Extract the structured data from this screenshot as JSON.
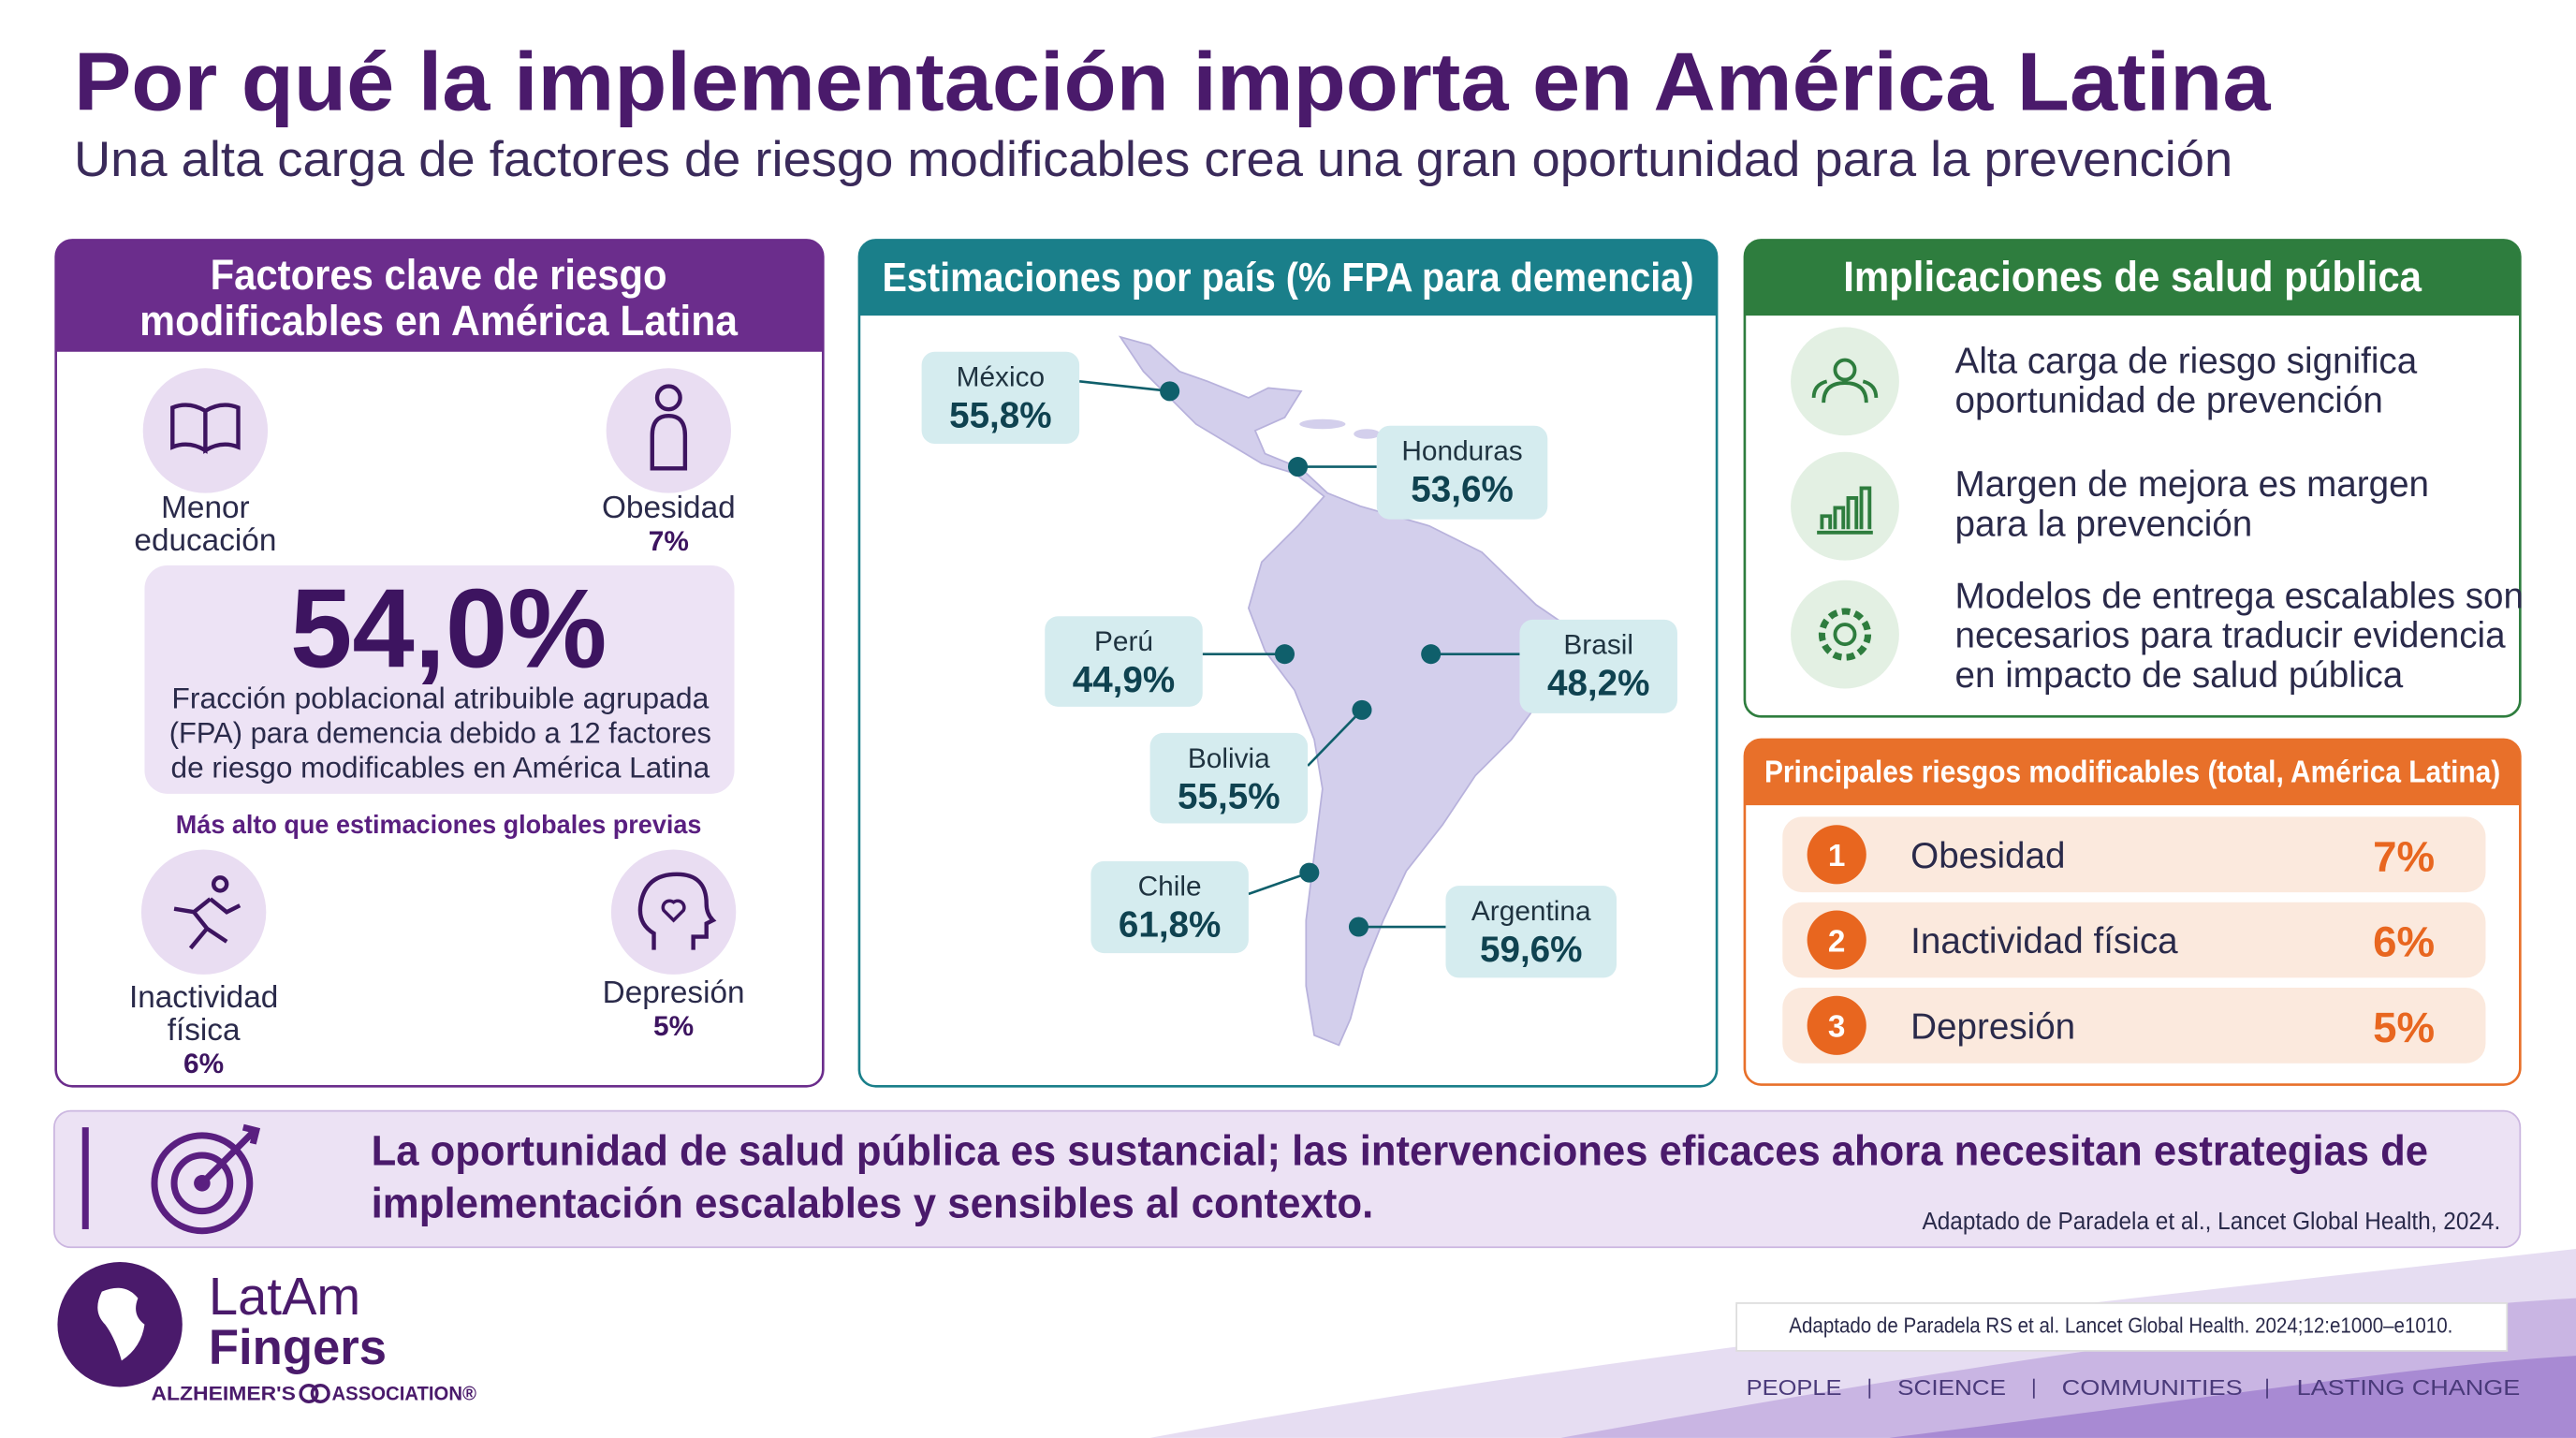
{
  "header": {
    "title": "Por qué la implementación importa en América Latina",
    "subtitle": "Una alta carga de factores de riesgo modificables crea una gran oportunidad para la prevención"
  },
  "risk_factors_panel": {
    "title": [
      "Factores clave de riesgo",
      "modificables en América Latina"
    ],
    "factors": [
      {
        "label": [
          "Menor",
          "educación"
        ]
      },
      {
        "label": [
          "Obesidad"
        ],
        "value": "7%"
      },
      {
        "label": [
          "Inactividad",
          "física"
        ],
        "value": "6%"
      },
      {
        "label": [
          "Depresión"
        ],
        "value": "5%"
      }
    ],
    "headline_value": "54,0%",
    "headline_text": [
      "Fracción poblacional atribuible agrupada",
      "(FPA) para demencia debido a 12 factores",
      "de riesgo modificables en América Latina"
    ],
    "note": "Más alto que estimaciones globales previas"
  },
  "map_panel": {
    "title": "Estimaciones por país (% FPA para demencia)",
    "countries": [
      {
        "name": "México",
        "value": "55,8%"
      },
      {
        "name": "Honduras",
        "value": "53,6%"
      },
      {
        "name": "Perú",
        "value": "44,9%"
      },
      {
        "name": "Brasil",
        "value": "48,2%"
      },
      {
        "name": "Bolivia",
        "value": "55,5%"
      },
      {
        "name": "Chile",
        "value": "61,8%"
      },
      {
        "name": "Argentina",
        "value": "59,6%"
      }
    ]
  },
  "implications_panel": {
    "title": "Implicaciones de salud pública",
    "items": [
      [
        "Alta carga de riesgo significa",
        "oportunidad de prevención"
      ],
      [
        "Margen de mejora es margen",
        "para la prevención"
      ],
      [
        "Modelos de entrega escalables son",
        "necesarios para traducir evidencia",
        "en impacto de salud pública"
      ]
    ]
  },
  "top_risks_panel": {
    "title": "Principales riesgos modificables (total, América Latina)",
    "items": [
      {
        "rank": "1",
        "name": "Obesidad",
        "value": "7%"
      },
      {
        "rank": "2",
        "name": "Inactividad física",
        "value": "6%"
      },
      {
        "rank": "3",
        "name": "Depresión",
        "value": "5%"
      }
    ]
  },
  "banner": {
    "text": [
      "La oportunidad de salud pública es sustancial; las intervenciones eficaces ahora necesitan estrategias de",
      "implementación escalables y sensibles al contexto."
    ],
    "source": "Adaptado de Paradela et al., Lancet Global Health, 2024."
  },
  "footer": {
    "logo": {
      "line1": "LatAm",
      "line2": "Fingers",
      "org_left": "ALZHEIMER'S",
      "org_right": "ASSOCIATION®"
    },
    "citation": "Adaptado de Paradela RS et al. Lancet Global Health. 2024;12:e1000–e1010.",
    "tagline": [
      "PEOPLE",
      "SCIENCE",
      "COMMUNITIES",
      "LASTING CHANGE"
    ]
  }
}
